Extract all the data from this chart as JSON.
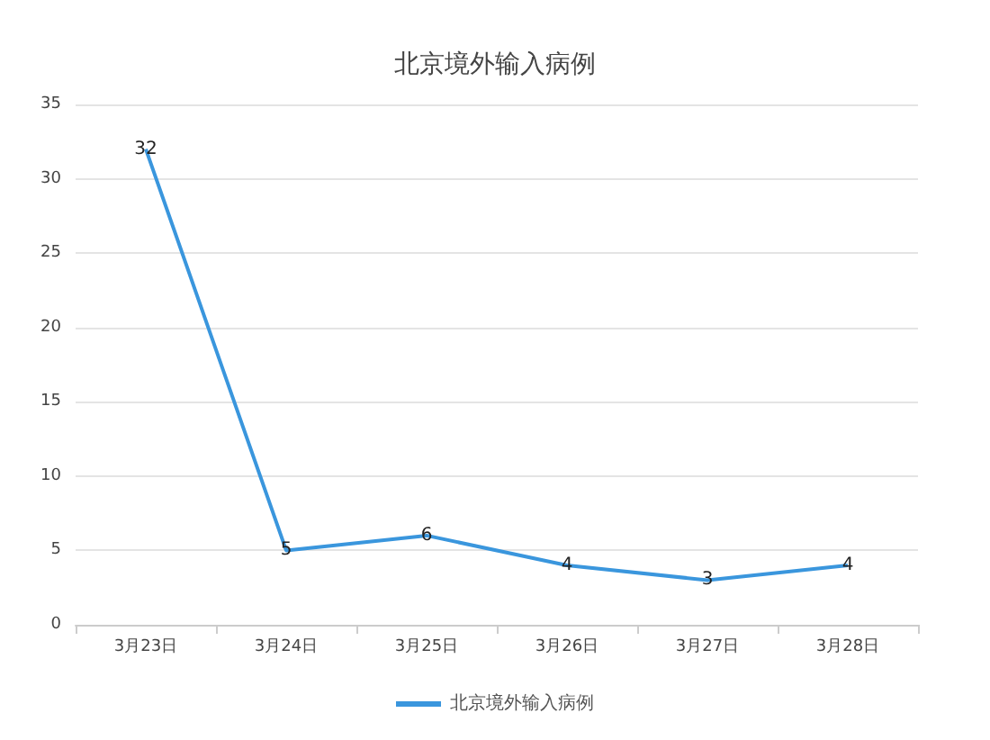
{
  "chart_data": {
    "type": "line",
    "title": "北京境外输入病例",
    "categories": [
      "3月23日",
      "3月24日",
      "3月25日",
      "3月26日",
      "3月27日",
      "3月28日"
    ],
    "series": [
      {
        "name": "北京境外输入病例",
        "color": "#3a96dd",
        "values": [
          32,
          5,
          6,
          4,
          3,
          4
        ]
      }
    ],
    "ylim": [
      0,
      35
    ],
    "yticks": [
      0,
      5,
      10,
      15,
      20,
      25,
      30,
      35
    ],
    "grid": "y",
    "legend": "bottom",
    "marker": "none",
    "line_style": "solid",
    "data_labels": true
  }
}
